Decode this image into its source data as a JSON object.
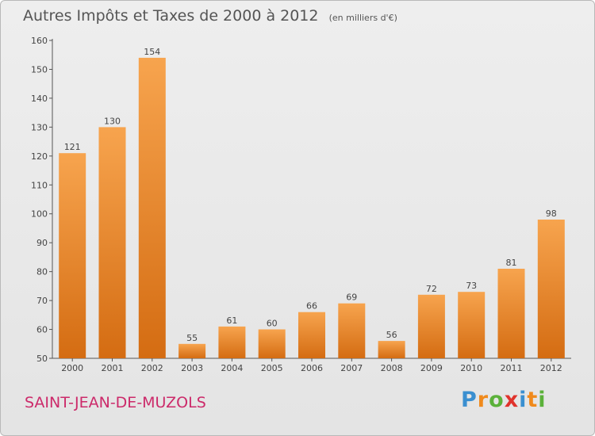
{
  "title": "Autres Impôts et Taxes de 2000 à 2012",
  "subtitle": "(en milliers d'€)",
  "place": "SAINT-JEAN-DE-MUZOLS",
  "logo": {
    "text": "Proxiti",
    "letters": [
      "P",
      "r",
      "o",
      "x",
      "i",
      "t",
      "i"
    ],
    "colors": [
      "#3a8fd0",
      "#f08a1c",
      "#5bb13a",
      "#e0332c",
      "#3a8fd0",
      "#f08a1c",
      "#5bb13a"
    ]
  },
  "colors": {
    "bar_top": "#f7a44e",
    "bar_bottom": "#d46c12",
    "title": "#555555",
    "place": "#cc2a6a"
  },
  "chart_data": {
    "type": "bar",
    "categories": [
      "2000",
      "2001",
      "2002",
      "2003",
      "2004",
      "2005",
      "2006",
      "2007",
      "2008",
      "2009",
      "2010",
      "2011",
      "2012"
    ],
    "values": [
      121,
      130,
      154,
      55,
      61,
      60,
      66,
      69,
      56,
      72,
      73,
      81,
      98
    ],
    "ylim": [
      50,
      160
    ],
    "yticks": [
      50,
      60,
      70,
      80,
      90,
      100,
      110,
      120,
      130,
      140,
      150,
      160
    ],
    "data_labels": true,
    "grid": false
  }
}
